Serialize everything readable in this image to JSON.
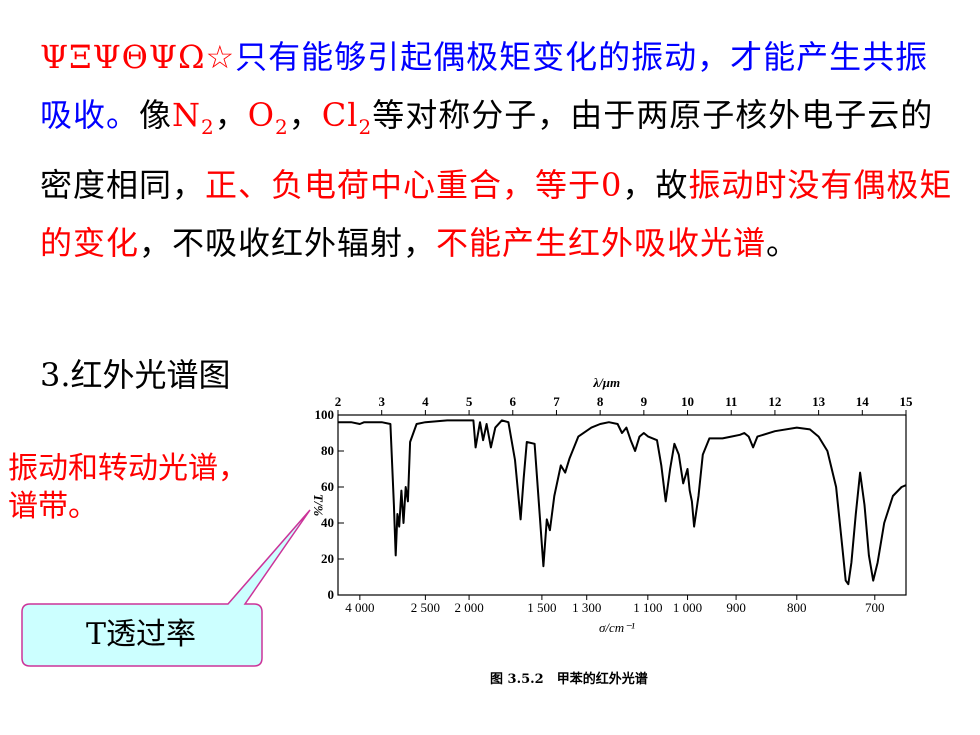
{
  "paragraph": {
    "lead_symbols": "ΨΞΨΘΨΩ☆",
    "part1": "只有能够引起偶极矩变化的振动，才能产生共振吸收。",
    "part2": "像",
    "n2_main": "N",
    "n2_sub": "2",
    "comma1": "，",
    "o2_main": "O",
    "o2_sub": "2",
    "comma2": "，",
    "cl2_main": "Cl",
    "cl2_sub": "2",
    "part3": "等对称分子，由于两原子核外电子云的密度相同，",
    "part4": "正、负电荷中心重合，等于0",
    "part5": "，故",
    "part6": "振动时没有偶极矩的变化",
    "part7": "，不吸收红外辐射，",
    "part8": "不能产生红外吸收光谱",
    "part9": "。"
  },
  "heading": "3.红外光谱图",
  "side_note": "振动和转动光谱，谱带。",
  "callout": "T透过率",
  "caption": "图 3.5.2　甲苯的红外光谱",
  "colors": {
    "red": "#ff0000",
    "blue": "#0000ff",
    "callout_border": "#cc3399",
    "callout_fill": "#ccffff"
  },
  "chart_data": {
    "type": "line",
    "title": "",
    "top_axis_label": "λ/μm",
    "top_ticks": [
      "2",
      "3",
      "4",
      "5",
      "6",
      "7",
      "8",
      "9",
      "10",
      "11",
      "12",
      "13",
      "14",
      "15"
    ],
    "xlabel": "σ/cm⁻¹",
    "bottom_ticks": [
      "4 000",
      "2 500",
      "2 000",
      "1 500",
      "1 300",
      "1 100",
      "1 000",
      "900",
      "800",
      "700"
    ],
    "ylabel": "T/%",
    "y_ticks": [
      "0",
      "20",
      "40",
      "60",
      "80",
      "100"
    ],
    "ylim": [
      0,
      100
    ],
    "xlim_um": [
      2,
      15
    ],
    "series": [
      {
        "points_um_T": [
          [
            2.0,
            96
          ],
          [
            2.3,
            96
          ],
          [
            2.5,
            95
          ],
          [
            2.6,
            96
          ],
          [
            3.0,
            96
          ],
          [
            3.2,
            95
          ],
          [
            3.28,
            50
          ],
          [
            3.32,
            22
          ],
          [
            3.36,
            45
          ],
          [
            3.4,
            38
          ],
          [
            3.45,
            58
          ],
          [
            3.5,
            40
          ],
          [
            3.55,
            60
          ],
          [
            3.6,
            52
          ],
          [
            3.65,
            85
          ],
          [
            3.8,
            95
          ],
          [
            4.0,
            96
          ],
          [
            4.5,
            97
          ],
          [
            5.0,
            97
          ],
          [
            5.1,
            97
          ],
          [
            5.15,
            82
          ],
          [
            5.25,
            96
          ],
          [
            5.32,
            86
          ],
          [
            5.4,
            95
          ],
          [
            5.5,
            82
          ],
          [
            5.6,
            93
          ],
          [
            5.75,
            97
          ],
          [
            5.9,
            96
          ],
          [
            6.05,
            75
          ],
          [
            6.18,
            42
          ],
          [
            6.25,
            65
          ],
          [
            6.32,
            85
          ],
          [
            6.5,
            84
          ],
          [
            6.6,
            50
          ],
          [
            6.7,
            16
          ],
          [
            6.78,
            42
          ],
          [
            6.85,
            36
          ],
          [
            6.95,
            55
          ],
          [
            7.1,
            72
          ],
          [
            7.2,
            68
          ],
          [
            7.3,
            76
          ],
          [
            7.5,
            88
          ],
          [
            7.8,
            93
          ],
          [
            8.0,
            95
          ],
          [
            8.2,
            96
          ],
          [
            8.4,
            95
          ],
          [
            8.5,
            90
          ],
          [
            8.6,
            93
          ],
          [
            8.7,
            86
          ],
          [
            8.8,
            80
          ],
          [
            8.9,
            88
          ],
          [
            9.0,
            90
          ],
          [
            9.1,
            88
          ],
          [
            9.3,
            86
          ],
          [
            9.4,
            72
          ],
          [
            9.5,
            52
          ],
          [
            9.6,
            70
          ],
          [
            9.7,
            84
          ],
          [
            9.8,
            78
          ],
          [
            9.9,
            62
          ],
          [
            10.0,
            70
          ],
          [
            10.05,
            58
          ],
          [
            10.1,
            52
          ],
          [
            10.15,
            38
          ],
          [
            10.25,
            55
          ],
          [
            10.35,
            78
          ],
          [
            10.5,
            87
          ],
          [
            10.8,
            87
          ],
          [
            11.0,
            88
          ],
          [
            11.2,
            89
          ],
          [
            11.3,
            90
          ],
          [
            11.4,
            88
          ],
          [
            11.5,
            82
          ],
          [
            11.6,
            88
          ],
          [
            12.0,
            91
          ],
          [
            12.5,
            93
          ],
          [
            12.8,
            92
          ],
          [
            13.0,
            88
          ],
          [
            13.2,
            80
          ],
          [
            13.4,
            60
          ],
          [
            13.55,
            25
          ],
          [
            13.62,
            8
          ],
          [
            13.68,
            6
          ],
          [
            13.75,
            18
          ],
          [
            13.85,
            45
          ],
          [
            13.95,
            68
          ],
          [
            14.05,
            50
          ],
          [
            14.15,
            22
          ],
          [
            14.25,
            8
          ],
          [
            14.35,
            18
          ],
          [
            14.5,
            40
          ],
          [
            14.7,
            55
          ],
          [
            14.9,
            60
          ],
          [
            15.0,
            61
          ]
        ]
      }
    ]
  }
}
